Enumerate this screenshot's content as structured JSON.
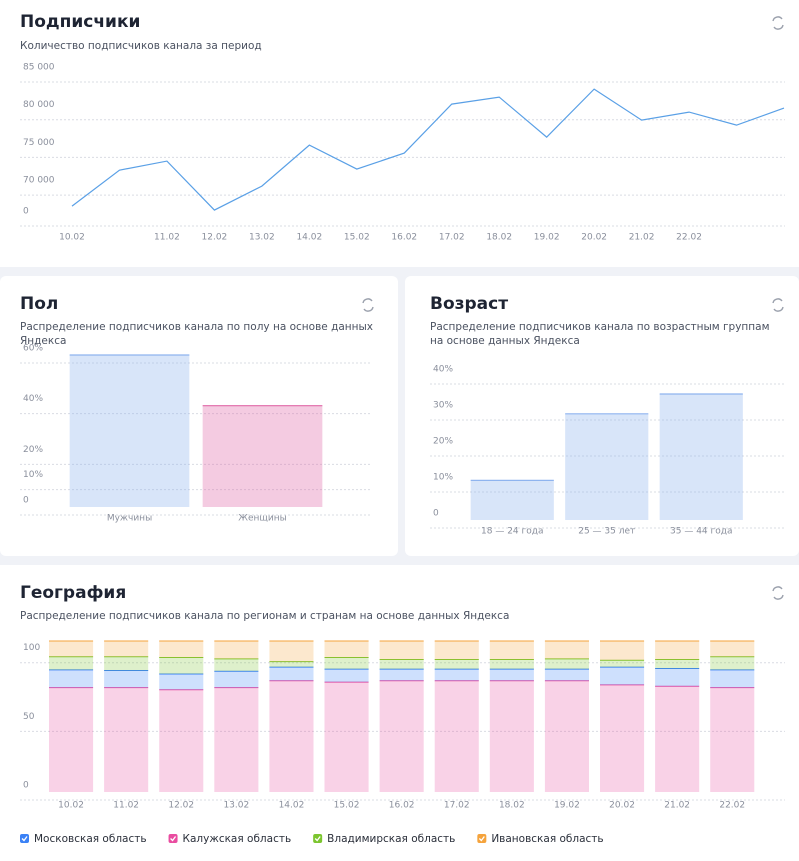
{
  "chart_data": [
    {
      "type": "line",
      "title": "Подписчики",
      "subtitle": "Количество подписчиков канала за период",
      "categories": [
        "10.02",
        null,
        "11.02",
        "12.02",
        "13.02",
        "14.02",
        "15.02",
        "16.02",
        "17.02",
        "18.02",
        "19.02",
        "20.02",
        "21.02",
        "22.02",
        null,
        null
      ],
      "series": [
        {
          "name": "Подписчики",
          "color": "#5aa0e6",
          "values": [
            67480,
            72250,
            73450,
            66950,
            70130,
            75570,
            72390,
            74510,
            81010,
            81940,
            76630,
            83000,
            78890,
            79950,
            78220,
            80480
          ]
        }
      ],
      "ylim": [
        65900,
        86000
      ],
      "axis_break": true,
      "yticks": [
        {
          "value": 0,
          "label": "0"
        },
        {
          "value": 70000,
          "label": "70 000"
        },
        {
          "value": 75000,
          "label": "75 000"
        },
        {
          "value": 80000,
          "label": "80 000"
        },
        {
          "value": 85000,
          "label": "85 000"
        }
      ],
      "grid": true
    },
    {
      "type": "bar",
      "title": "Пол",
      "subtitle": "Распределение подписчиков канала по полу на основе данных Яндекса",
      "categories": [
        "Мужчины",
        "Женщины"
      ],
      "values": [
        60,
        40
      ],
      "colors": [
        "#8fb4ef",
        "#e06aa8"
      ],
      "ylim": [
        0,
        60
      ],
      "yticks": [
        0,
        {
          "value": 10,
          "label": "10%"
        },
        {
          "value": 20,
          "label": "20%"
        },
        {
          "value": 40,
          "label": "40%"
        },
        {
          "value": 60,
          "label": "60%"
        }
      ],
      "grid": true
    },
    {
      "type": "bar",
      "title": "Возраст",
      "subtitle": "Распределение подписчиков канала по возрастным группам на основе данных Яндекса",
      "categories": [
        "18 — 24 года",
        "25 — 35 лет",
        "35 — 44 года"
      ],
      "values": [
        11,
        29.5,
        35
      ],
      "colors": [
        "#8fb4ef",
        "#8fb4ef",
        "#8fb4ef"
      ],
      "ylim": [
        0,
        40
      ],
      "yticks": [
        0,
        {
          "value": 10,
          "label": "10%"
        },
        {
          "value": 20,
          "label": "20%"
        },
        {
          "value": 30,
          "label": "30%"
        },
        {
          "value": 40,
          "label": "40%"
        }
      ],
      "grid": true
    },
    {
      "type": "stacked_bar",
      "title": "География",
      "subtitle": "Распределение подписчиков канала по регионам и странам на основе данных Яндекса",
      "categories": [
        "10.02",
        "11.02",
        "12.02",
        "13.02",
        "14.02",
        "15.02",
        "16.02",
        "17.02",
        "18.02",
        "19.02",
        "20.02",
        "21.02",
        "22.02"
      ],
      "series": [
        {
          "name": "Московская область",
          "color": "#3b82f6",
          "values": [
            13,
            12.5,
            11.5,
            12,
            10,
            9.5,
            8.5,
            8.5,
            8.5,
            8.5,
            13,
            13,
            13
          ]
        },
        {
          "name": "Калужская область",
          "color": "#e94ca0",
          "values": [
            76,
            76,
            74.5,
            76,
            81,
            80,
            81,
            81,
            81,
            81,
            78,
            77,
            76
          ]
        },
        {
          "name": "Владимирская область",
          "color": "#7cc52f",
          "values": [
            9.5,
            10,
            12,
            9,
            4,
            8.5,
            7,
            7,
            7,
            7.5,
            5,
            6.5,
            9.5
          ]
        },
        {
          "name": "Ивановская область",
          "color": "#f5a33c",
          "values": [
            11.5,
            11.5,
            12,
            13,
            15,
            12,
            13.5,
            13.5,
            13.5,
            13,
            14,
            13.5,
            11.5
          ]
        }
      ],
      "ylim": [
        0,
        110
      ],
      "yticks": [
        0,
        50,
        100
      ],
      "grid": true,
      "legend": "bottom"
    }
  ]
}
